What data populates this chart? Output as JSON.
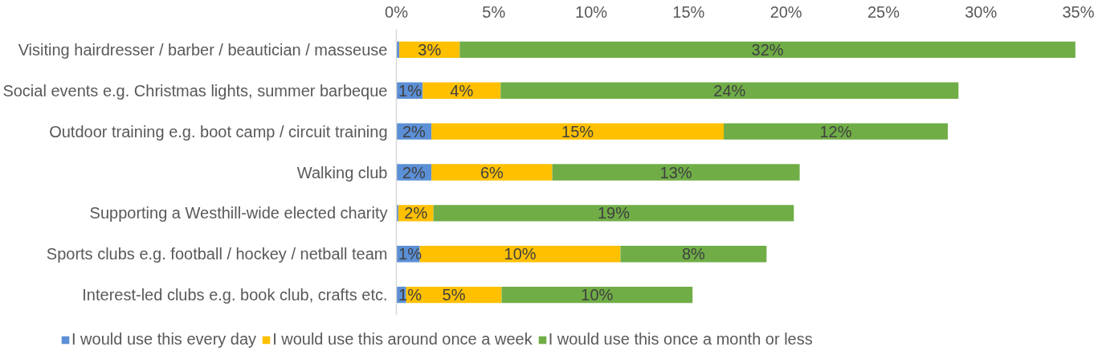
{
  "chart_data": {
    "type": "bar",
    "orientation": "horizontal",
    "stacked": true,
    "categories": [
      "Visiting hairdresser / barber / beautician / masseuse",
      "Social events e.g. Christmas lights, summer barbeque",
      "Outdoor training e.g. boot camp / circuit training",
      "Walking club",
      "Supporting a Westhill-wide elected charity",
      "Sports clubs e.g. football / hockey / netball team",
      "Interest-led clubs e.g. book club, crafts etc."
    ],
    "series": [
      {
        "name": "I would use this every day",
        "color": "#5b8fd6",
        "values": [
          0.15,
          1.35,
          1.8,
          1.8,
          0.1,
          1.2,
          0.5
        ],
        "value_labels": [
          null,
          "1%",
          "2%",
          "2%",
          null,
          "1%",
          "1%"
        ]
      },
      {
        "name": "I would use this around once a week",
        "color": "#ffc000",
        "values": [
          3.1,
          4.0,
          15.0,
          6.2,
          1.8,
          10.3,
          4.9
        ],
        "value_labels": [
          "3%",
          "4%",
          "15%",
          "6%",
          "2%",
          "10%",
          "5%"
        ]
      },
      {
        "name": "I would use this once a month or less",
        "color": "#70ad47",
        "values": [
          31.6,
          23.5,
          11.5,
          12.7,
          18.5,
          7.5,
          9.8
        ],
        "value_labels": [
          "32%",
          "24%",
          "12%",
          "13%",
          "19%",
          "8%",
          "10%"
        ]
      }
    ],
    "xlim": [
      0,
      35
    ],
    "xticks": [
      {
        "value": 0,
        "label": "0%"
      },
      {
        "value": 5,
        "label": "5%"
      },
      {
        "value": 10,
        "label": "10%"
      },
      {
        "value": 15,
        "label": "15%"
      },
      {
        "value": 20,
        "label": "20%"
      },
      {
        "value": 25,
        "label": "25%"
      },
      {
        "value": 30,
        "label": "30%"
      },
      {
        "value": 35,
        "label": "35%"
      }
    ],
    "grid": false,
    "legend": "bottom"
  }
}
